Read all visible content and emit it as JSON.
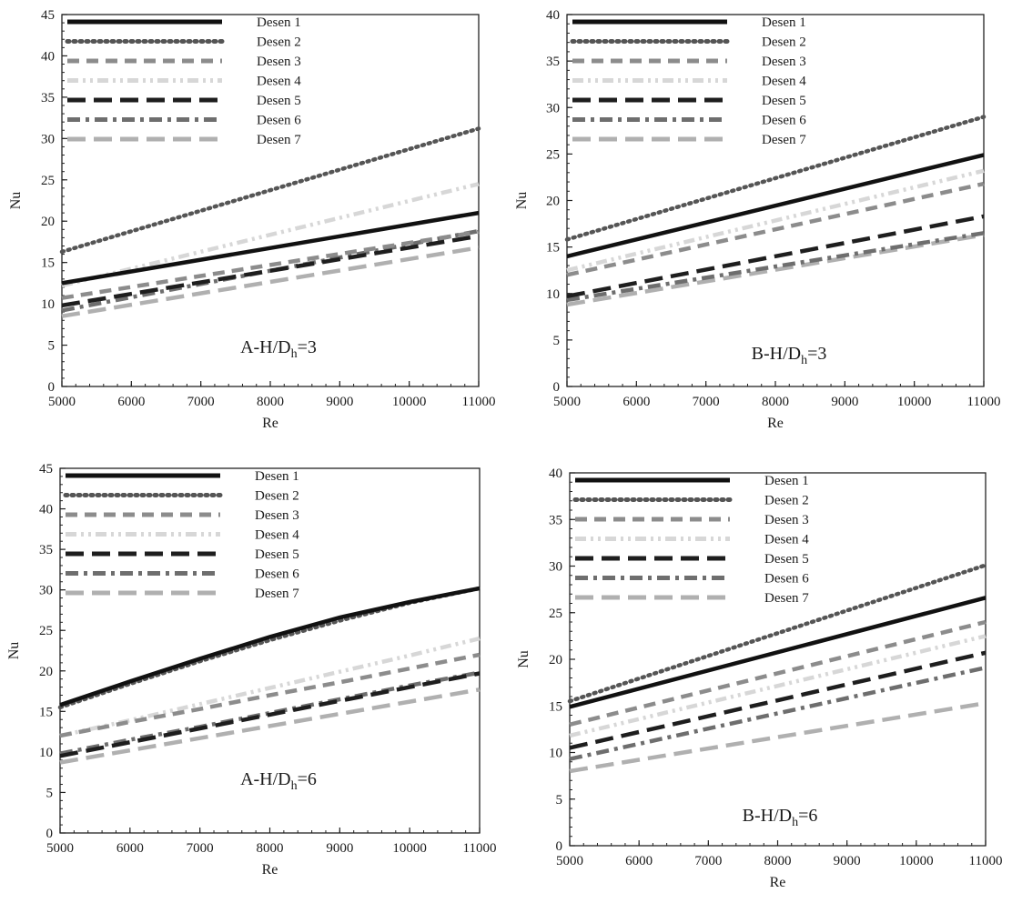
{
  "legend_labels": [
    "Desen 1",
    "Desen 2",
    "Desen 3",
    "Desen 4",
    "Desen 5",
    "Desen 6",
    "Desen 7"
  ],
  "series_styles": [
    {
      "color": "#111111",
      "dash": "solid"
    },
    {
      "color": "#555555",
      "dash": "dotted"
    },
    {
      "color": "#8c8c8c",
      "dash": "dashed"
    },
    {
      "color": "#d7d7d7",
      "dash": "dashdotdot"
    },
    {
      "color": "#1e1e1e",
      "dash": "longdash"
    },
    {
      "color": "#6e6e6e",
      "dash": "dashdot"
    },
    {
      "color": "#b0b0b0",
      "dash": "longdash"
    }
  ],
  "chart_data": [
    {
      "type": "line",
      "panel_label": {
        "prefix": "A-H/D",
        "sub": "h",
        "suffix": "=3"
      },
      "xlabel": "Re",
      "ylabel": "Nu",
      "xlim": [
        5000,
        11000
      ],
      "ylim": [
        0,
        45
      ],
      "xticks": [
        5000,
        6000,
        7000,
        8000,
        9000,
        10000,
        11000
      ],
      "yticks": [
        0,
        5,
        10,
        15,
        20,
        25,
        30,
        35,
        40,
        45
      ],
      "legend_position": "top-left",
      "x": [
        5000,
        11000
      ],
      "series": [
        {
          "name": "Desen 1",
          "values": [
            12.5,
            21.0
          ]
        },
        {
          "name": "Desen 2",
          "values": [
            16.3,
            31.2
          ]
        },
        {
          "name": "Desen 3",
          "values": [
            10.7,
            18.7
          ]
        },
        {
          "name": "Desen 4",
          "values": [
            12.2,
            24.5
          ]
        },
        {
          "name": "Desen 5",
          "values": [
            9.8,
            18.2
          ]
        },
        {
          "name": "Desen 6",
          "values": [
            9.2,
            18.8
          ]
        },
        {
          "name": "Desen 7",
          "values": [
            8.5,
            16.8
          ]
        }
      ]
    },
    {
      "type": "line",
      "panel_label": {
        "prefix": "B-H/D",
        "sub": "h",
        "suffix": "=3"
      },
      "xlabel": "Re",
      "ylabel": "Nu",
      "xlim": [
        5000,
        11000
      ],
      "ylim": [
        0,
        40
      ],
      "xticks": [
        5000,
        6000,
        7000,
        8000,
        9000,
        10000,
        11000
      ],
      "yticks": [
        0,
        5,
        10,
        15,
        20,
        25,
        30,
        35,
        40
      ],
      "legend_position": "top-left",
      "x": [
        5000,
        11000
      ],
      "series": [
        {
          "name": "Desen 1",
          "values": [
            14.0,
            24.9
          ]
        },
        {
          "name": "Desen 2",
          "values": [
            15.8,
            29.0
          ]
        },
        {
          "name": "Desen 3",
          "values": [
            12.0,
            21.8
          ]
        },
        {
          "name": "Desen 4",
          "values": [
            12.5,
            23.2
          ]
        },
        {
          "name": "Desen 5",
          "values": [
            9.7,
            18.3
          ]
        },
        {
          "name": "Desen 6",
          "values": [
            9.3,
            16.5
          ]
        },
        {
          "name": "Desen 7",
          "values": [
            8.8,
            16.3
          ]
        }
      ]
    },
    {
      "type": "line",
      "panel_label": {
        "prefix": "A-H/D",
        "sub": "h",
        "suffix": "=6"
      },
      "xlabel": "Re",
      "ylabel": "Nu",
      "xlim": [
        5000,
        11000
      ],
      "ylim": [
        0,
        45
      ],
      "xticks": [
        5000,
        6000,
        7000,
        8000,
        9000,
        10000,
        11000
      ],
      "yticks": [
        0,
        5,
        10,
        15,
        20,
        25,
        30,
        35,
        40,
        45
      ],
      "legend_position": "top-left",
      "x": [
        5000,
        6000,
        7000,
        8000,
        9000,
        10000,
        11000
      ],
      "series": [
        {
          "name": "Desen 1",
          "values": [
            15.8,
            18.7,
            21.5,
            24.2,
            26.6,
            28.5,
            30.2
          ]
        },
        {
          "name": "Desen 2",
          "values": [
            15.5,
            18.4,
            21.2,
            23.8,
            26.2,
            28.4,
            30.2
          ]
        },
        {
          "name": "Desen 3",
          "values": [
            12.0,
            13.7,
            15.3,
            17.0,
            18.6,
            20.3,
            22.0
          ]
        },
        {
          "name": "Desen 4",
          "values": [
            12.0,
            13.9,
            15.9,
            17.9,
            19.9,
            21.9,
            24.0
          ]
        },
        {
          "name": "Desen 5",
          "values": [
            9.5,
            11.2,
            12.9,
            14.6,
            16.3,
            18.0,
            19.7
          ]
        },
        {
          "name": "Desen 6",
          "values": [
            9.8,
            11.5,
            13.1,
            14.8,
            16.5,
            18.2,
            19.8
          ]
        },
        {
          "name": "Desen 7",
          "values": [
            8.7,
            10.2,
            11.7,
            13.2,
            14.7,
            16.2,
            17.7
          ]
        }
      ]
    },
    {
      "type": "line",
      "panel_label": {
        "prefix": "B-H/D",
        "sub": "h",
        "suffix": "=6"
      },
      "xlabel": "Re",
      "ylabel": "Nu",
      "xlim": [
        5000,
        11000
      ],
      "ylim": [
        0,
        40
      ],
      "xticks": [
        5000,
        6000,
        7000,
        8000,
        9000,
        10000,
        11000
      ],
      "yticks": [
        0,
        5,
        10,
        15,
        20,
        25,
        30,
        35,
        40
      ],
      "legend_position": "top-left",
      "x": [
        5000,
        11000
      ],
      "series": [
        {
          "name": "Desen 1",
          "values": [
            14.9,
            26.6
          ]
        },
        {
          "name": "Desen 2",
          "values": [
            15.5,
            30.1
          ]
        },
        {
          "name": "Desen 3",
          "values": [
            13.0,
            24.0
          ]
        },
        {
          "name": "Desen 4",
          "values": [
            11.8,
            22.5
          ]
        },
        {
          "name": "Desen 5",
          "values": [
            10.5,
            20.7
          ]
        },
        {
          "name": "Desen 6",
          "values": [
            9.3,
            19.1
          ]
        },
        {
          "name": "Desen 7",
          "values": [
            8.0,
            15.3
          ]
        }
      ]
    }
  ]
}
